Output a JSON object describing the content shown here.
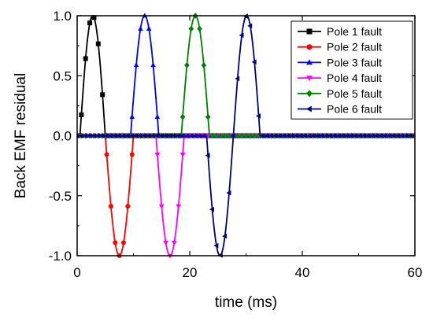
{
  "chart_data": {
    "type": "line",
    "xlabel": "time (ms)",
    "ylabel": "Back EMF residual",
    "xlim": [
      0,
      60
    ],
    "ylim": [
      -1.0,
      1.0
    ],
    "xticks": [
      0,
      20,
      40,
      60
    ],
    "yticks": [
      -1.0,
      -0.5,
      0.0,
      0.5,
      1.0
    ],
    "xtick_labels": [
      "0",
      "20",
      "40",
      "60"
    ],
    "ytick_labels": [
      "-1.0",
      "-0.5",
      "0.0",
      "0.5",
      "1.0"
    ],
    "grid": false,
    "legend_position": "top-right",
    "marker_step": 0.75,
    "series": [
      {
        "name": "Pole 1 fault",
        "color": "#000000",
        "marker": "square",
        "pulse": {
          "start": 0.5,
          "end": 5.0,
          "sign": 1
        }
      },
      {
        "name": "Pole 2 fault",
        "color": "#ff0000",
        "marker": "circle",
        "pulse": {
          "start": 5.0,
          "end": 10.0,
          "sign": -1
        }
      },
      {
        "name": "Pole 3 fault",
        "color": "#0000ff",
        "marker": "triangle-up",
        "pulse": {
          "start": 9.5,
          "end": 14.5,
          "sign": 1
        }
      },
      {
        "name": "Pole 4 fault",
        "color": "#ff00ff",
        "marker": "triangle-down",
        "pulse": {
          "start": 14.0,
          "end": 19.0,
          "sign": -1
        }
      },
      {
        "name": "Pole 5 fault",
        "color": "#008000",
        "marker": "diamond",
        "pulse": {
          "start": 18.5,
          "end": 23.5,
          "sign": 1
        }
      },
      {
        "name": "Pole 6 fault",
        "color": "#000080",
        "marker": "triangle-left",
        "pulse": {
          "start": 23.0,
          "end": 32.5,
          "sign": 1,
          "shape": "full-cycle"
        }
      }
    ]
  }
}
